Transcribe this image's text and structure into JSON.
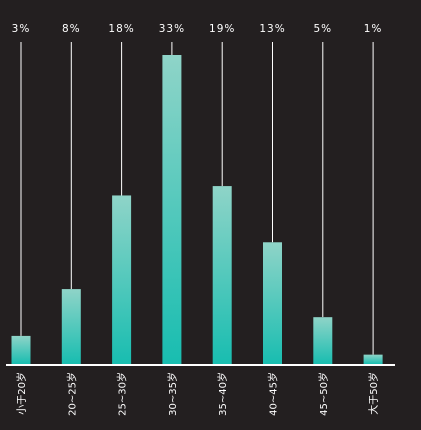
{
  "chart_data": {
    "type": "bar",
    "categories": [
      "小于20岁",
      "20~25岁",
      "25~30岁",
      "30~35岁",
      "35~40岁",
      "40~45岁",
      "45~50岁",
      "大于50岁"
    ],
    "values": [
      3,
      8,
      18,
      33,
      19,
      13,
      5,
      1
    ],
    "data_labels": [
      "3%",
      "8%",
      "18%",
      "33%",
      "19%",
      "13%",
      "5%",
      "1%"
    ],
    "ylim": [
      0,
      33
    ],
    "grid": false,
    "bar_gradient": [
      "#8fd4c8",
      "#18bdb0"
    ],
    "background": "#231f20",
    "baseline_color": "#ffffff",
    "text_color": "#ffffff"
  }
}
